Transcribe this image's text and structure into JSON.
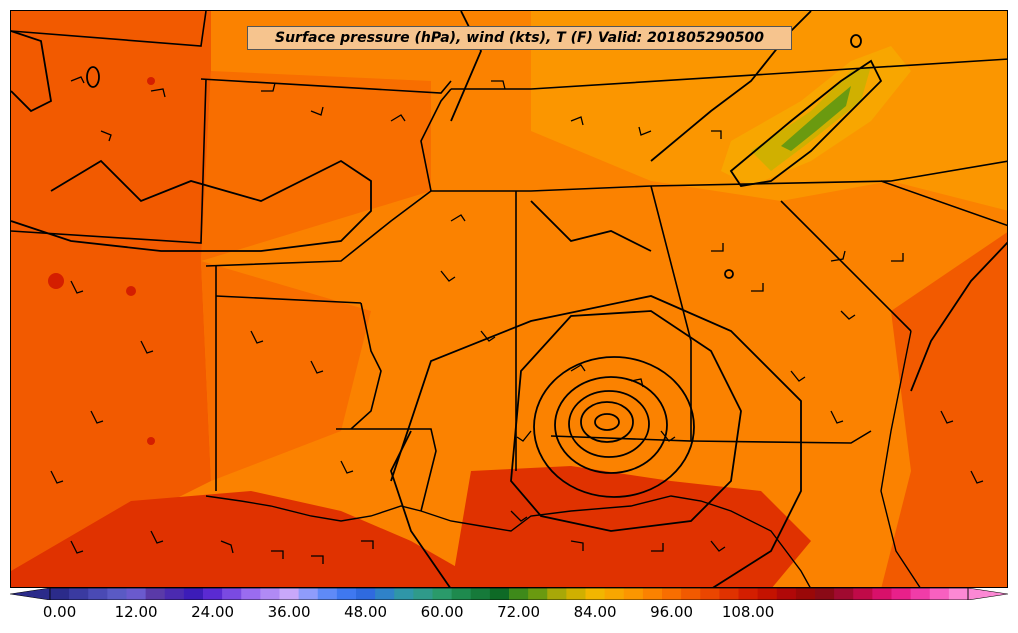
{
  "map": {
    "title": "Surface pressure (hPa), wind (kts), T (F) Valid: 201805290500"
  },
  "colorbar": {
    "tick_labels": [
      "0.00",
      "12.00",
      "24.00",
      "36.00",
      "48.00",
      "60.00",
      "72.00",
      "84.00",
      "96.00",
      "108.00"
    ],
    "colors": [
      "#2b2b8a",
      "#3a3aa0",
      "#4a4ab4",
      "#5a5ac4",
      "#6a5acd",
      "#5a3aa8",
      "#4b2ab0",
      "#3c1cb8",
      "#5a2ad2",
      "#7a4ae2",
      "#9a6cf0",
      "#b08af5",
      "#c8a8fa",
      "#8f9cfb",
      "#5f8af7",
      "#3f78f0",
      "#2f6adf",
      "#2f82c8",
      "#2f96a8",
      "#2f9a8a",
      "#2a9a6a",
      "#1e8a4e",
      "#167a3a",
      "#0e6a26",
      "#3e8a1a",
      "#6a9a10",
      "#a8a808",
      "#d0b000",
      "#f2b600",
      "#f8a600",
      "#fb9600",
      "#fb8200",
      "#f86e00",
      "#f25a00",
      "#ea4600",
      "#e03200",
      "#d41e00",
      "#c41200",
      "#b00808",
      "#9a0808",
      "#8a0a16",
      "#a00a30",
      "#c00a48",
      "#d8106a",
      "#e8208a",
      "#f03ca8",
      "#f860c0",
      "#fc88d4"
    ]
  }
}
